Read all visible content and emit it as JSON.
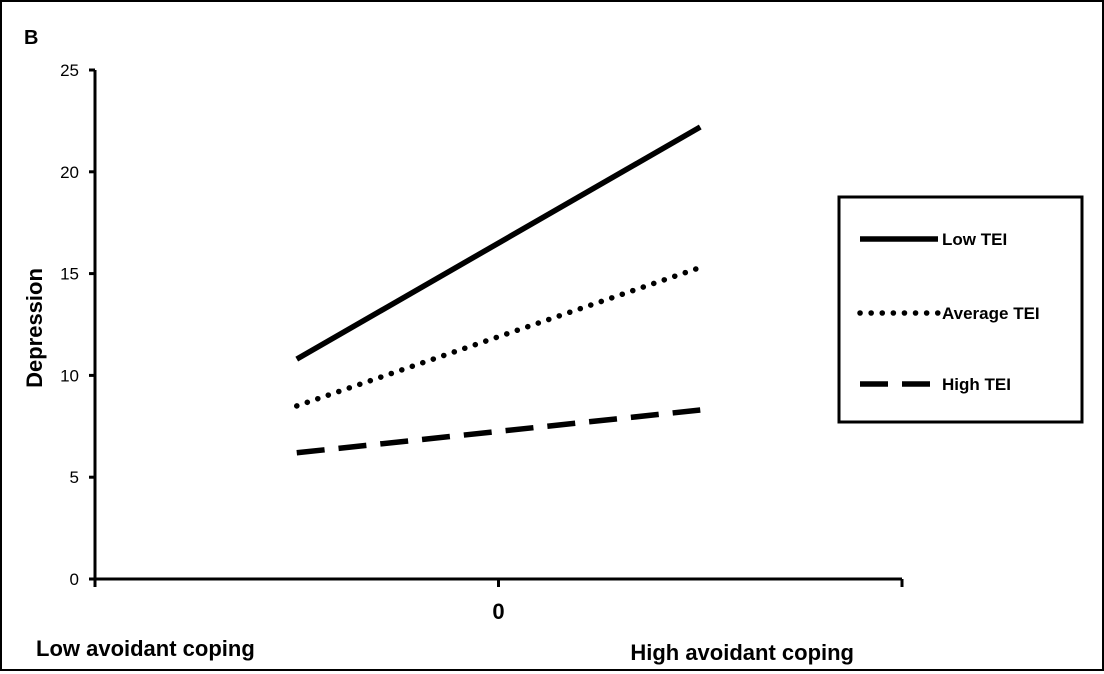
{
  "panel_label": "B",
  "chart_data": {
    "type": "line",
    "title": "",
    "ylabel": "Depression",
    "xlabel": "",
    "x_categories": [
      "Low avoidant coping",
      "High avoidant coping"
    ],
    "x_center_label": "0",
    "x": [
      -1,
      1
    ],
    "xlim": [
      -2,
      2
    ],
    "ylim": [
      0,
      25
    ],
    "yticks": [
      0,
      5,
      10,
      15,
      20,
      25
    ],
    "grid": false,
    "legend_position": "right",
    "series": [
      {
        "name": "Low TEI",
        "style": "solid",
        "values": [
          10.8,
          22.2
        ]
      },
      {
        "name": "Average TEI",
        "style": "dotted",
        "values": [
          8.5,
          15.3
        ]
      },
      {
        "name": "High TEI",
        "style": "dashed",
        "values": [
          6.2,
          8.3
        ]
      }
    ],
    "colors": {
      "line": "#000000",
      "axis": "#000000"
    }
  }
}
